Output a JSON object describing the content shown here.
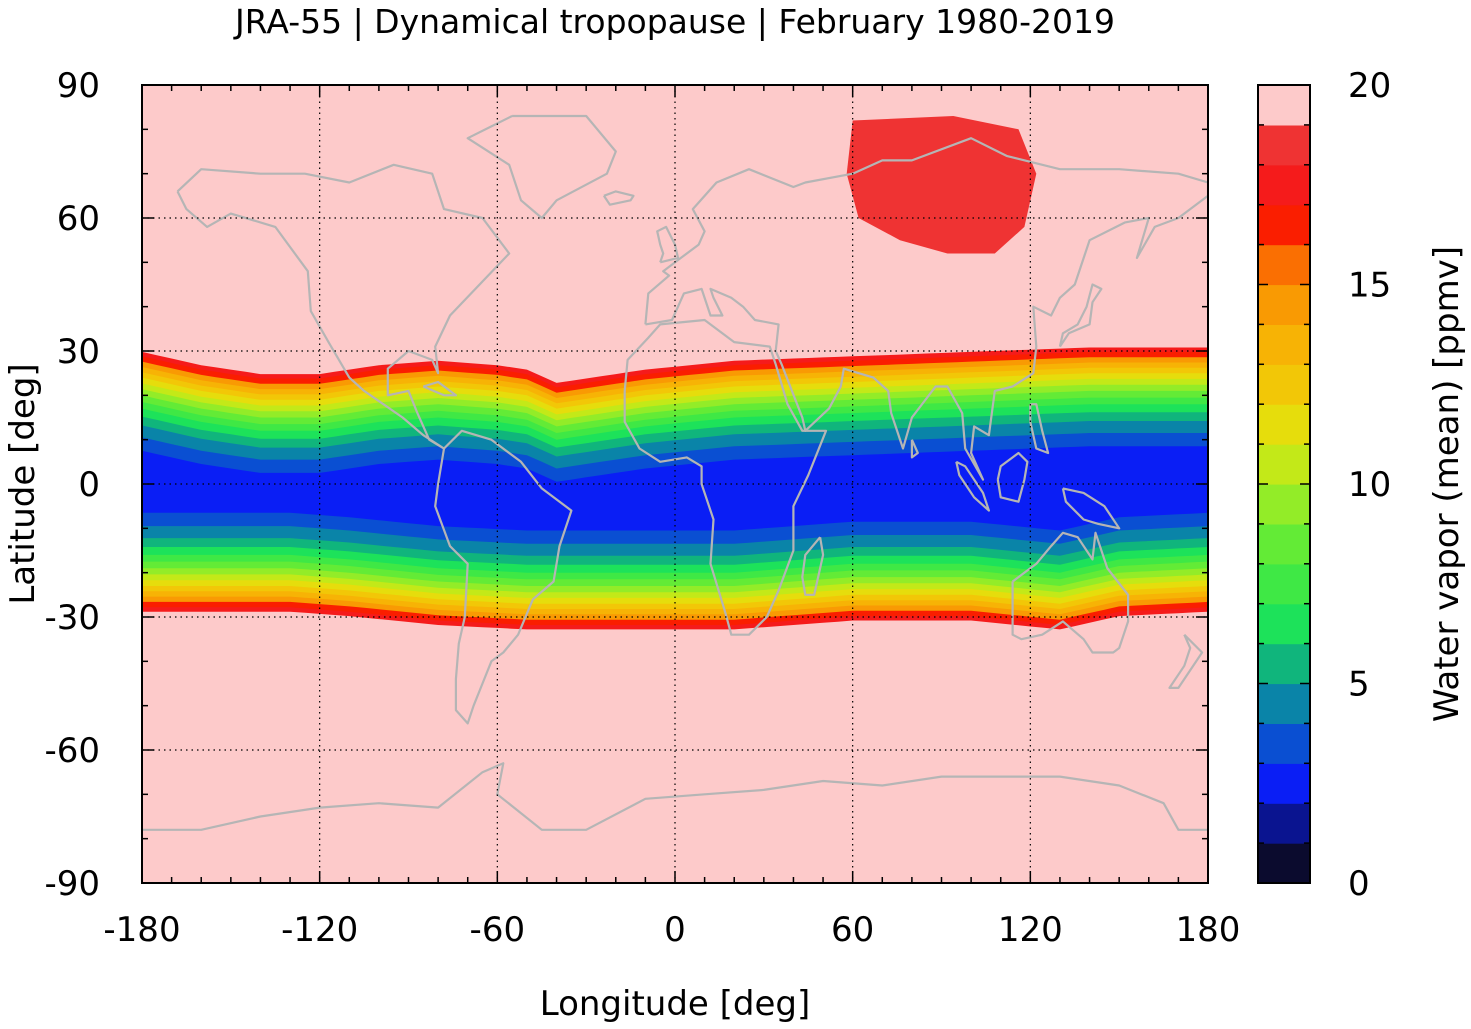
{
  "chart_data": {
    "type": "heatmap",
    "title": "JRA-55 | Dynamical tropopause | February 1980-2019",
    "xlabel": "Longitude [deg]",
    "ylabel": "Latitude [deg]",
    "xlim": [
      -180,
      180
    ],
    "ylim": [
      -90,
      90
    ],
    "xticks": [
      "-180",
      "-120",
      "-60",
      "0",
      "60",
      "120",
      "180"
    ],
    "yticks": [
      "90",
      "60",
      "30",
      "0",
      "-30",
      "-60",
      "-90"
    ],
    "grid": true,
    "background_value": 20,
    "colorbar": {
      "label": "Water vapor (mean) [ppmv]",
      "range": [
        0,
        20
      ],
      "ticks": [
        "0",
        "5",
        "10",
        "15",
        "20"
      ],
      "step": 1,
      "colors": [
        "#0b0b2e",
        "#0a1490",
        "#0a1ef5",
        "#0a4fd2",
        "#0a84a8",
        "#10b57c",
        "#1de25a",
        "#3fe845",
        "#63eb36",
        "#93ec28",
        "#c3e918",
        "#e6dd0c",
        "#f2c707",
        "#f7b305",
        "#f99a03",
        "#fa6f02",
        "#fa1e00",
        "#f51b1b",
        "#ef3333",
        "#f07a7a"
      ],
      "top_color": "#fdcaca"
    },
    "bands": {
      "northern_edge_lat": [
        [
          -180,
          31
        ],
        [
          -160,
          28
        ],
        [
          -140,
          26
        ],
        [
          -120,
          26
        ],
        [
          -100,
          28
        ],
        [
          -80,
          29
        ],
        [
          -60,
          28
        ],
        [
          -50,
          27
        ],
        [
          -40,
          24
        ],
        [
          -30,
          25
        ],
        [
          -10,
          27
        ],
        [
          20,
          29
        ],
        [
          60,
          30
        ],
        [
          100,
          31
        ],
        [
          140,
          32
        ],
        [
          180,
          32
        ]
      ],
      "southern_edge_lat": [
        [
          -180,
          -30
        ],
        [
          -150,
          -30
        ],
        [
          -130,
          -30
        ],
        [
          -110,
          -31
        ],
        [
          -80,
          -33
        ],
        [
          -50,
          -34
        ],
        [
          -20,
          -34
        ],
        [
          20,
          -34
        ],
        [
          60,
          -32
        ],
        [
          100,
          -32
        ],
        [
          130,
          -34
        ],
        [
          150,
          -31
        ],
        [
          180,
          -30
        ]
      ],
      "equatorial_core_value": 2.5
    },
    "northern_hemisphere_feature": {
      "description_value": "moist region over Eurasia",
      "outer_value": 19.5,
      "inner_value": 18.5,
      "lon_range": [
        40,
        135
      ],
      "lat_range": [
        46,
        86
      ]
    }
  }
}
